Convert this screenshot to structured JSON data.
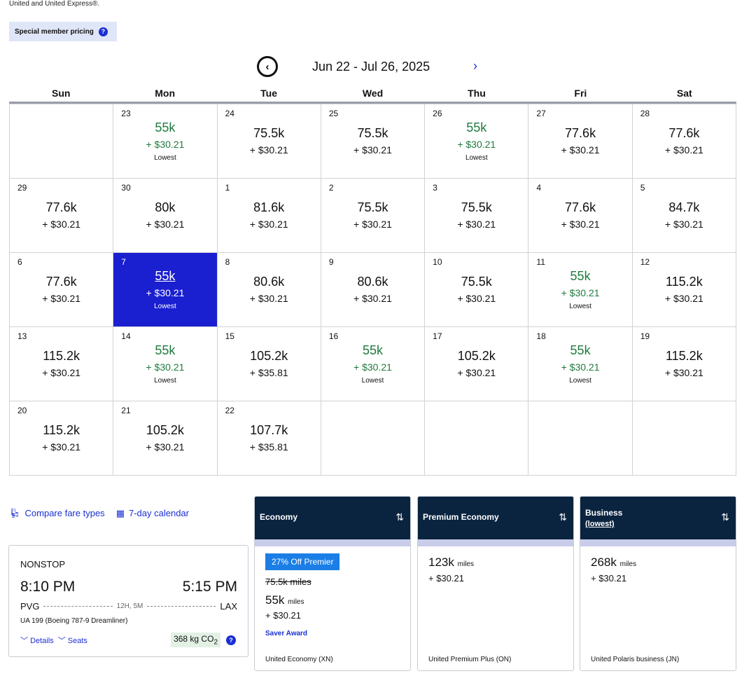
{
  "top_note": "United and United Express®.",
  "member_pricing": {
    "label": "Special member pricing",
    "help_icon": "question-icon"
  },
  "calendar": {
    "range_label": "Jun 22 - Jul 26, 2025",
    "prev_icon": "chevron-left-circle-icon",
    "next_icon": "chevron-right-icon",
    "weekdays": [
      "Sun",
      "Mon",
      "Tue",
      "Wed",
      "Thu",
      "Fri",
      "Sat"
    ],
    "lowest_label": "Lowest",
    "cells": [
      {
        "day": "",
        "miles": "",
        "tax": "",
        "low": false,
        "selected": false
      },
      {
        "day": "23",
        "miles": "55k",
        "tax": "+ $30.21",
        "low": true,
        "selected": false
      },
      {
        "day": "24",
        "miles": "75.5k",
        "tax": "+ $30.21",
        "low": false,
        "selected": false
      },
      {
        "day": "25",
        "miles": "75.5k",
        "tax": "+ $30.21",
        "low": false,
        "selected": false
      },
      {
        "day": "26",
        "miles": "55k",
        "tax": "+ $30.21",
        "low": true,
        "selected": false
      },
      {
        "day": "27",
        "miles": "77.6k",
        "tax": "+ $30.21",
        "low": false,
        "selected": false
      },
      {
        "day": "28",
        "miles": "77.6k",
        "tax": "+ $30.21",
        "low": false,
        "selected": false
      },
      {
        "day": "29",
        "miles": "77.6k",
        "tax": "+ $30.21",
        "low": false,
        "selected": false
      },
      {
        "day": "30",
        "miles": "80k",
        "tax": "+ $30.21",
        "low": false,
        "selected": false
      },
      {
        "day": "1",
        "miles": "81.6k",
        "tax": "+ $30.21",
        "low": false,
        "selected": false
      },
      {
        "day": "2",
        "miles": "75.5k",
        "tax": "+ $30.21",
        "low": false,
        "selected": false
      },
      {
        "day": "3",
        "miles": "75.5k",
        "tax": "+ $30.21",
        "low": false,
        "selected": false
      },
      {
        "day": "4",
        "miles": "77.6k",
        "tax": "+ $30.21",
        "low": false,
        "selected": false
      },
      {
        "day": "5",
        "miles": "84.7k",
        "tax": "+ $30.21",
        "low": false,
        "selected": false
      },
      {
        "day": "6",
        "miles": "77.6k",
        "tax": "+ $30.21",
        "low": false,
        "selected": false
      },
      {
        "day": "7",
        "miles": "55k",
        "tax": "+ $30.21",
        "low": true,
        "selected": true
      },
      {
        "day": "8",
        "miles": "80.6k",
        "tax": "+ $30.21",
        "low": false,
        "selected": false
      },
      {
        "day": "9",
        "miles": "80.6k",
        "tax": "+ $30.21",
        "low": false,
        "selected": false
      },
      {
        "day": "10",
        "miles": "75.5k",
        "tax": "+ $30.21",
        "low": false,
        "selected": false
      },
      {
        "day": "11",
        "miles": "55k",
        "tax": "+ $30.21",
        "low": true,
        "selected": false
      },
      {
        "day": "12",
        "miles": "115.2k",
        "tax": "+ $30.21",
        "low": false,
        "selected": false
      },
      {
        "day": "13",
        "miles": "115.2k",
        "tax": "+ $30.21",
        "low": false,
        "selected": false
      },
      {
        "day": "14",
        "miles": "55k",
        "tax": "+ $30.21",
        "low": true,
        "selected": false
      },
      {
        "day": "15",
        "miles": "105.2k",
        "tax": "+ $35.81",
        "low": false,
        "selected": false
      },
      {
        "day": "16",
        "miles": "55k",
        "tax": "+ $30.21",
        "low": true,
        "selected": false
      },
      {
        "day": "17",
        "miles": "105.2k",
        "tax": "+ $30.21",
        "low": false,
        "selected": false
      },
      {
        "day": "18",
        "miles": "55k",
        "tax": "+ $30.21",
        "low": true,
        "selected": false
      },
      {
        "day": "19",
        "miles": "115.2k",
        "tax": "+ $30.21",
        "low": false,
        "selected": false
      },
      {
        "day": "20",
        "miles": "115.2k",
        "tax": "+ $30.21",
        "low": false,
        "selected": false
      },
      {
        "day": "21",
        "miles": "105.2k",
        "tax": "+ $30.21",
        "low": false,
        "selected": false
      },
      {
        "day": "22",
        "miles": "107.7k",
        "tax": "+ $35.81",
        "low": false,
        "selected": false
      },
      {
        "day": "",
        "miles": "",
        "tax": "",
        "low": false,
        "selected": false
      },
      {
        "day": "",
        "miles": "",
        "tax": "",
        "low": false,
        "selected": false
      },
      {
        "day": "",
        "miles": "",
        "tax": "",
        "low": false,
        "selected": false
      },
      {
        "day": "",
        "miles": "",
        "tax": "",
        "low": false,
        "selected": false
      }
    ]
  },
  "links": {
    "compare": "Compare fare types",
    "compare_icon": "seat-icon",
    "seven_day": "7-day calendar",
    "seven_day_icon": "calendar-icon"
  },
  "flight": {
    "type": "NONSTOP",
    "depart_time": "8:10 PM",
    "arrive_time": "5:15 PM",
    "origin": "PVG",
    "destination": "LAX",
    "duration": "12H, 5M",
    "flight_info": "UA 199 (Boeing 787-9 Dreamliner)",
    "details_label": "Details",
    "seats_label": "Seats",
    "co2_value": "368 kg CO",
    "co2_sub": "2"
  },
  "fares": {
    "economy": {
      "header": "Economy",
      "promo": "27% Off Premier",
      "original_miles": "75.5k miles",
      "miles": "55k",
      "miles_unit": "miles",
      "tax": "+ $30.21",
      "award": "Saver Award",
      "cabin": "United Economy (XN)"
    },
    "premium": {
      "header": "Premium Economy",
      "miles": "123k",
      "miles_unit": "miles",
      "tax": "+ $30.21",
      "cabin": "United Premium Plus (ON)"
    },
    "business": {
      "header": "Business",
      "header_sub": "(lowest)",
      "miles": "268k",
      "miles_unit": "miles",
      "tax": "+ $30.21",
      "cabin": "United Polaris business (JN)"
    },
    "sort_icon": "sort-arrows-icon"
  },
  "colors": {
    "accent": "#1a2fd4",
    "selected_bg": "#1a1fd0",
    "lowest_green": "#1f7a3e",
    "fare_header_bg": "#0a2440",
    "promo_bg": "#1a7ee6"
  }
}
